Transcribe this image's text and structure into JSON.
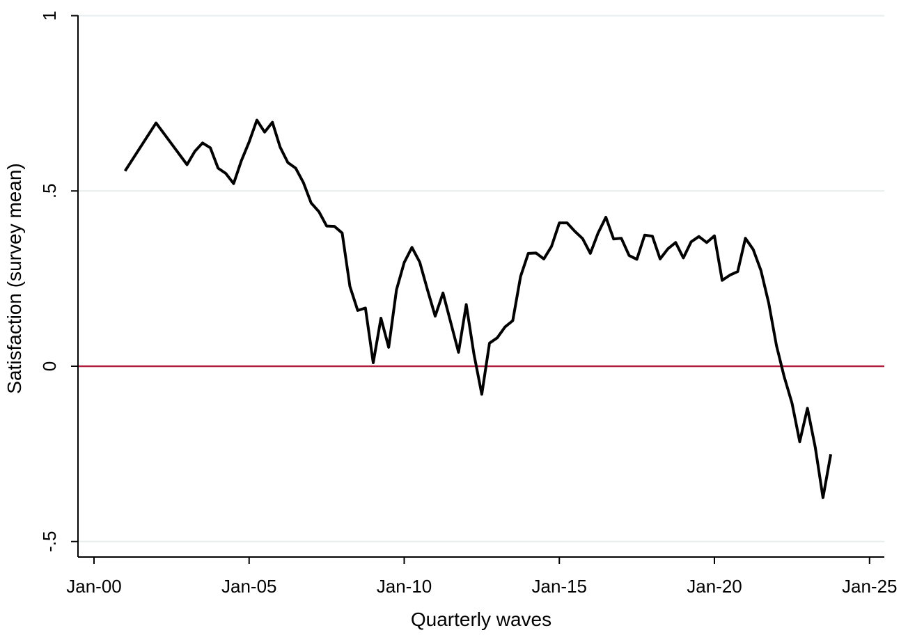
{
  "chart_data": {
    "type": "line",
    "title": "",
    "xlabel": "Quarterly waves",
    "ylabel": "Satisfaction (survey mean)",
    "x_tick_labels": [
      "Jan-00",
      "Jan-05",
      "Jan-10",
      "Jan-15",
      "Jan-20",
      "Jan-25"
    ],
    "y_tick_labels": [
      "-.5",
      "0",
      ".5",
      "1"
    ],
    "y_ticks": [
      -0.5,
      0,
      0.5,
      1
    ],
    "ylim": [
      -0.55,
      1.0
    ],
    "xlim": [
      "2000-01",
      "2025-06"
    ],
    "grid": true,
    "reference_line": {
      "y": 0,
      "color": "#b01c3c"
    },
    "series": [
      {
        "color": "#000000",
        "points": [
          [
            "2001-01",
            0.557
          ],
          [
            "2002-01",
            0.694
          ],
          [
            "2003-01",
            0.575
          ],
          [
            "2003-04",
            0.613
          ],
          [
            "2003-07",
            0.637
          ],
          [
            "2003-10",
            0.623
          ],
          [
            "2004-01",
            0.565
          ],
          [
            "2004-04",
            0.55
          ],
          [
            "2004-07",
            0.521
          ],
          [
            "2004-10",
            0.586
          ],
          [
            "2005-01",
            0.64
          ],
          [
            "2005-04",
            0.702
          ],
          [
            "2005-07",
            0.668
          ],
          [
            "2005-10",
            0.696
          ],
          [
            "2006-01",
            0.625
          ],
          [
            "2006-04",
            0.581
          ],
          [
            "2006-07",
            0.565
          ],
          [
            "2006-10",
            0.524
          ],
          [
            "2007-01",
            0.466
          ],
          [
            "2007-04",
            0.441
          ],
          [
            "2007-07",
            0.4
          ],
          [
            "2007-10",
            0.399
          ],
          [
            "2008-01",
            0.38
          ],
          [
            "2008-04",
            0.228
          ],
          [
            "2008-07",
            0.159
          ],
          [
            "2008-10",
            0.166
          ],
          [
            "2009-01",
            0.01
          ],
          [
            "2009-04",
            0.137
          ],
          [
            "2009-07",
            0.054
          ],
          [
            "2009-10",
            0.218
          ],
          [
            "2010-01",
            0.296
          ],
          [
            "2010-04",
            0.339
          ],
          [
            "2010-07",
            0.297
          ],
          [
            "2010-10",
            0.218
          ],
          [
            "2011-01",
            0.143
          ],
          [
            "2011-04",
            0.209
          ],
          [
            "2011-07",
            0.125
          ],
          [
            "2011-10",
            0.04
          ],
          [
            "2012-01",
            0.176
          ],
          [
            "2012-04",
            0.034
          ],
          [
            "2012-07",
            -0.08
          ],
          [
            "2012-10",
            0.066
          ],
          [
            "2013-01",
            0.081
          ],
          [
            "2013-04",
            0.112
          ],
          [
            "2013-07",
            0.13
          ],
          [
            "2013-10",
            0.256
          ],
          [
            "2014-01",
            0.322
          ],
          [
            "2014-04",
            0.323
          ],
          [
            "2014-07",
            0.306
          ],
          [
            "2014-10",
            0.342
          ],
          [
            "2015-01",
            0.409
          ],
          [
            "2015-04",
            0.409
          ],
          [
            "2015-07",
            0.385
          ],
          [
            "2015-10",
            0.364
          ],
          [
            "2016-01",
            0.322
          ],
          [
            "2016-04",
            0.38
          ],
          [
            "2016-07",
            0.425
          ],
          [
            "2016-10",
            0.363
          ],
          [
            "2017-01",
            0.365
          ],
          [
            "2017-04",
            0.316
          ],
          [
            "2017-07",
            0.305
          ],
          [
            "2017-10",
            0.374
          ],
          [
            "2018-01",
            0.371
          ],
          [
            "2018-04",
            0.306
          ],
          [
            "2018-07",
            0.335
          ],
          [
            "2018-10",
            0.353
          ],
          [
            "2019-01",
            0.309
          ],
          [
            "2019-04",
            0.355
          ],
          [
            "2019-07",
            0.37
          ],
          [
            "2019-10",
            0.353
          ],
          [
            "2020-01",
            0.372
          ],
          [
            "2020-04",
            0.245
          ],
          [
            "2020-07",
            0.26
          ],
          [
            "2020-10",
            0.27
          ],
          [
            "2021-01",
            0.365
          ],
          [
            "2021-04",
            0.333
          ],
          [
            "2021-07",
            0.273
          ],
          [
            "2021-10",
            0.18
          ],
          [
            "2022-01",
            0.059
          ],
          [
            "2022-04",
            -0.03
          ],
          [
            "2022-07",
            -0.105
          ],
          [
            "2022-10",
            -0.215
          ],
          [
            "2023-01",
            -0.12
          ],
          [
            "2023-04",
            -0.231
          ],
          [
            "2023-07",
            -0.375
          ],
          [
            "2023-10",
            -0.251
          ]
        ]
      }
    ]
  }
}
